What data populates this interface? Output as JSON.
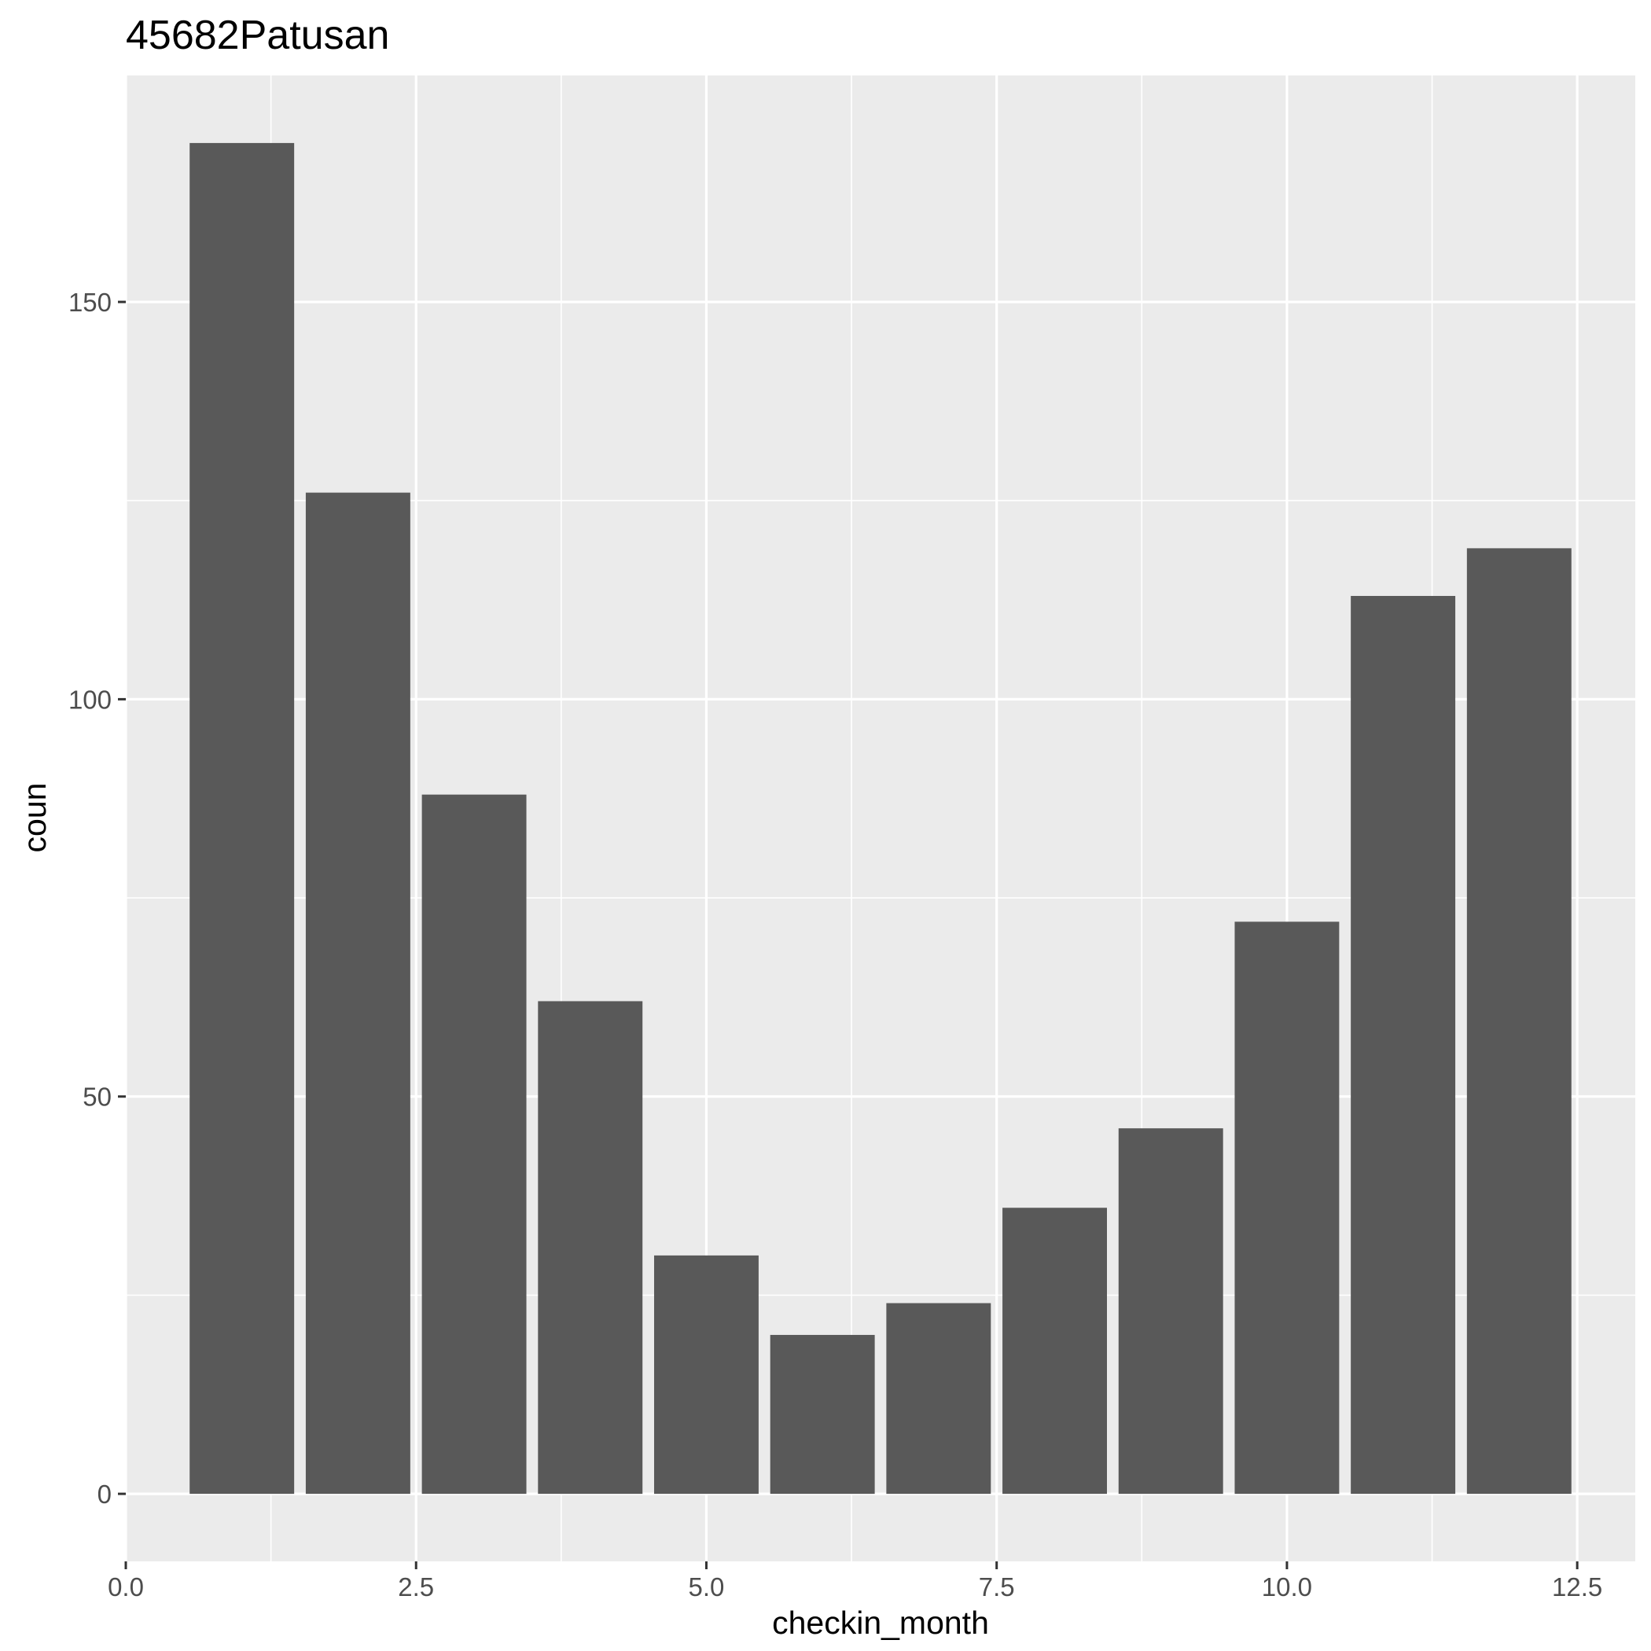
{
  "chart_data": {
    "type": "bar",
    "title": "45682Patusan",
    "xlabel": "checkin_month",
    "ylabel": "coun",
    "x": [
      1,
      2,
      3,
      4,
      5,
      6,
      7,
      8,
      9,
      10,
      11,
      12
    ],
    "values": [
      170,
      126,
      88,
      62,
      30,
      20,
      24,
      36,
      46,
      72,
      113,
      119
    ],
    "xlim": [
      0,
      13
    ],
    "ylim": [
      -8.5,
      178.5
    ],
    "x_ticks": [
      0.0,
      2.5,
      5.0,
      7.5,
      10.0,
      12.5
    ],
    "x_tick_labels": [
      "0.0",
      "2.5",
      "5.0",
      "7.5",
      "10.0",
      "12.5"
    ],
    "y_ticks": [
      0,
      50,
      100,
      150
    ],
    "y_tick_labels": [
      "0",
      "50",
      "100",
      "150"
    ],
    "bar_width": 0.9,
    "bar_color": "#595959",
    "panel_color": "#ebebeb",
    "grid": true,
    "legend": "none"
  }
}
